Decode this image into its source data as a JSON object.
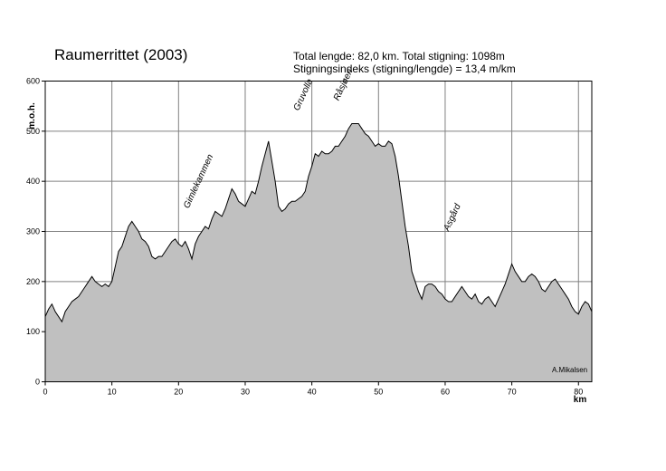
{
  "chart_data": {
    "type": "area",
    "title": "Raumerrittet (2003)",
    "subtitle_lines": [
      "Total lengde: 82,0 km. Total stigning: 1098m",
      "Stigningsindeks (stigning/lengde) = 13,4 m/km"
    ],
    "xlabel": "km",
    "ylabel": "m.o.h.",
    "xlim": [
      0,
      82
    ],
    "ylim": [
      0,
      600
    ],
    "x_ticks": [
      0,
      10,
      20,
      30,
      40,
      50,
      60,
      70,
      80
    ],
    "y_ticks": [
      0,
      100,
      200,
      300,
      400,
      500,
      600
    ],
    "grid": true,
    "fill_color": "#c0c0c0",
    "line_color": "#000000",
    "credit": "A.Mikalsen",
    "annotations": [
      {
        "text": "Gimlekammen",
        "km": 21.5,
        "elevation": 345
      },
      {
        "text": "Gruvolla",
        "km": 38,
        "elevation": 540
      },
      {
        "text": "Råsjøen",
        "km": 44,
        "elevation": 560
      },
      {
        "text": "Asgård",
        "km": 60.5,
        "elevation": 300
      }
    ],
    "series": [
      {
        "x": [
          0,
          0.5,
          1,
          1.5,
          2,
          2.5,
          3,
          3.5,
          4,
          4.5,
          5,
          5.5,
          6,
          6.5,
          7,
          7.5,
          8,
          8.5,
          9,
          9.5,
          10,
          10.5,
          11,
          11.5,
          12,
          12.5,
          13,
          13.5,
          14,
          14.5,
          15,
          15.5,
          16,
          16.5,
          17,
          17.5,
          18,
          18.5,
          19,
          19.5,
          20,
          20.5,
          21,
          21.5,
          22,
          22.5,
          23,
          23.5,
          24,
          24.5,
          25,
          25.5,
          26,
          26.5,
          27,
          27.5,
          28,
          28.5,
          29,
          29.5,
          30,
          30.5,
          31,
          31.5,
          32,
          32.5,
          33,
          33.5,
          34,
          34.5,
          35,
          35.5,
          36,
          36.5,
          37,
          37.5,
          38,
          38.5,
          39,
          39.5,
          40,
          40.5,
          41,
          41.5,
          42,
          42.5,
          43,
          43.5,
          44,
          44.5,
          45,
          45.5,
          46,
          46.5,
          47,
          47.5,
          48,
          48.5,
          49,
          49.5,
          50,
          50.5,
          51,
          51.5,
          52,
          52.5,
          53,
          53.5,
          54,
          54.5,
          55,
          55.5,
          56,
          56.5,
          57,
          57.5,
          58,
          58.5,
          59,
          59.5,
          60,
          60.5,
          61,
          61.5,
          62,
          62.5,
          63,
          63.5,
          64,
          64.5,
          65,
          65.5,
          66,
          66.5,
          67,
          67.5,
          68,
          68.5,
          69,
          69.5,
          70,
          70.5,
          71,
          71.5,
          72,
          72.5,
          73,
          73.5,
          74,
          74.5,
          75,
          75.5,
          76,
          76.5,
          77,
          77.5,
          78,
          78.5,
          79,
          79.5,
          80,
          80.5,
          81,
          81.5,
          82
        ],
        "y": [
          130,
          145,
          155,
          140,
          130,
          120,
          140,
          150,
          160,
          165,
          170,
          180,
          190,
          200,
          210,
          200,
          195,
          190,
          195,
          190,
          200,
          230,
          260,
          270,
          290,
          310,
          320,
          310,
          300,
          285,
          280,
          270,
          250,
          245,
          250,
          250,
          260,
          270,
          280,
          285,
          275,
          270,
          280,
          265,
          245,
          275,
          290,
          300,
          310,
          305,
          325,
          340,
          335,
          330,
          345,
          365,
          385,
          375,
          360,
          355,
          350,
          365,
          380,
          375,
          400,
          430,
          455,
          480,
          440,
          400,
          350,
          340,
          345,
          355,
          360,
          360,
          365,
          370,
          380,
          410,
          430,
          455,
          450,
          460,
          455,
          455,
          460,
          470,
          470,
          480,
          490,
          505,
          515,
          515,
          515,
          505,
          495,
          490,
          480,
          470,
          475,
          470,
          470,
          480,
          475,
          450,
          410,
          360,
          310,
          270,
          220,
          200,
          180,
          165,
          190,
          195,
          195,
          190,
          180,
          175,
          165,
          160,
          160,
          170,
          180,
          190,
          180,
          170,
          165,
          175,
          160,
          155,
          165,
          170,
          160,
          150,
          165,
          180,
          195,
          215,
          235,
          220,
          210,
          200,
          200,
          210,
          215,
          210,
          200,
          185,
          180,
          190,
          200,
          205,
          195,
          185,
          175,
          165,
          150,
          140,
          135,
          150,
          160,
          155,
          140
        ]
      }
    ]
  }
}
